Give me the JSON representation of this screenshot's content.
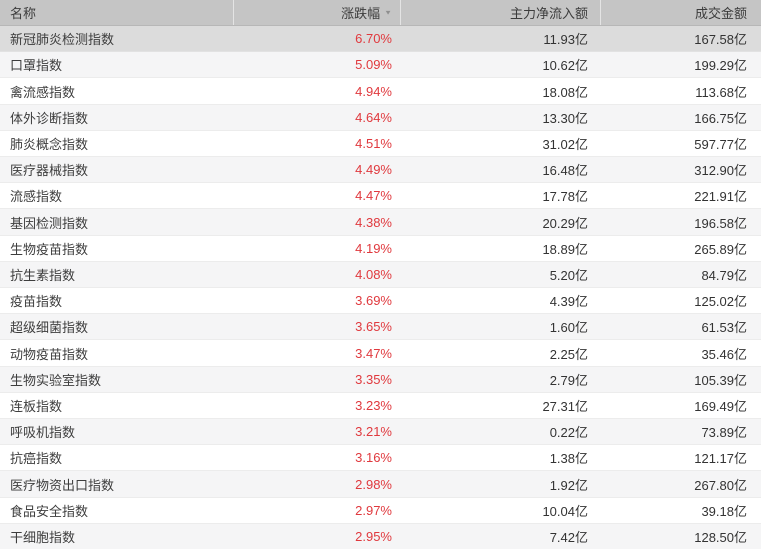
{
  "table": {
    "columns": [
      {
        "label": "名称",
        "align": "left"
      },
      {
        "label": "涨跌幅",
        "align": "right",
        "sorted": "desc"
      },
      {
        "label": "主力净流入额",
        "align": "right"
      },
      {
        "label": "成交金额",
        "align": "right"
      }
    ],
    "rows": [
      {
        "name": "新冠肺炎检测指数",
        "change": "6.70%",
        "inflow": "11.93亿",
        "turnover": "167.58亿"
      },
      {
        "name": "口罩指数",
        "change": "5.09%",
        "inflow": "10.62亿",
        "turnover": "199.29亿"
      },
      {
        "name": "禽流感指数",
        "change": "4.94%",
        "inflow": "18.08亿",
        "turnover": "113.68亿"
      },
      {
        "name": "体外诊断指数",
        "change": "4.64%",
        "inflow": "13.30亿",
        "turnover": "166.75亿"
      },
      {
        "name": "肺炎概念指数",
        "change": "4.51%",
        "inflow": "31.02亿",
        "turnover": "597.77亿"
      },
      {
        "name": "医疗器械指数",
        "change": "4.49%",
        "inflow": "16.48亿",
        "turnover": "312.90亿"
      },
      {
        "name": "流感指数",
        "change": "4.47%",
        "inflow": "17.78亿",
        "turnover": "221.91亿"
      },
      {
        "name": "基因检测指数",
        "change": "4.38%",
        "inflow": "20.29亿",
        "turnover": "196.58亿"
      },
      {
        "name": "生物疫苗指数",
        "change": "4.19%",
        "inflow": "18.89亿",
        "turnover": "265.89亿"
      },
      {
        "name": "抗生素指数",
        "change": "4.08%",
        "inflow": "5.20亿",
        "turnover": "84.79亿"
      },
      {
        "name": "疫苗指数",
        "change": "3.69%",
        "inflow": "4.39亿",
        "turnover": "125.02亿"
      },
      {
        "name": "超级细菌指数",
        "change": "3.65%",
        "inflow": "1.60亿",
        "turnover": "61.53亿"
      },
      {
        "name": "动物疫苗指数",
        "change": "3.47%",
        "inflow": "2.25亿",
        "turnover": "35.46亿"
      },
      {
        "name": "生物实验室指数",
        "change": "3.35%",
        "inflow": "2.79亿",
        "turnover": "105.39亿"
      },
      {
        "name": "连板指数",
        "change": "3.23%",
        "inflow": "27.31亿",
        "turnover": "169.49亿"
      },
      {
        "name": "呼吸机指数",
        "change": "3.21%",
        "inflow": "0.22亿",
        "turnover": "73.89亿"
      },
      {
        "name": "抗癌指数",
        "change": "3.16%",
        "inflow": "1.38亿",
        "turnover": "121.17亿"
      },
      {
        "name": "医疗物资出口指数",
        "change": "2.98%",
        "inflow": "1.92亿",
        "turnover": "267.80亿"
      },
      {
        "name": "食品安全指数",
        "change": "2.97%",
        "inflow": "10.04亿",
        "turnover": "39.18亿"
      },
      {
        "name": "干细胞指数",
        "change": "2.95%",
        "inflow": "7.42亿",
        "turnover": "128.50亿"
      }
    ],
    "highlighted_row_index": 0
  },
  "icons": {
    "sort_desc": "▼"
  },
  "colors": {
    "up_red": "#e0393e",
    "header_bg": "#c5c5c5",
    "row_highlight": "#dcdcdc",
    "row_stripe": "#f5f5f6",
    "row_white": "#ffffff"
  }
}
